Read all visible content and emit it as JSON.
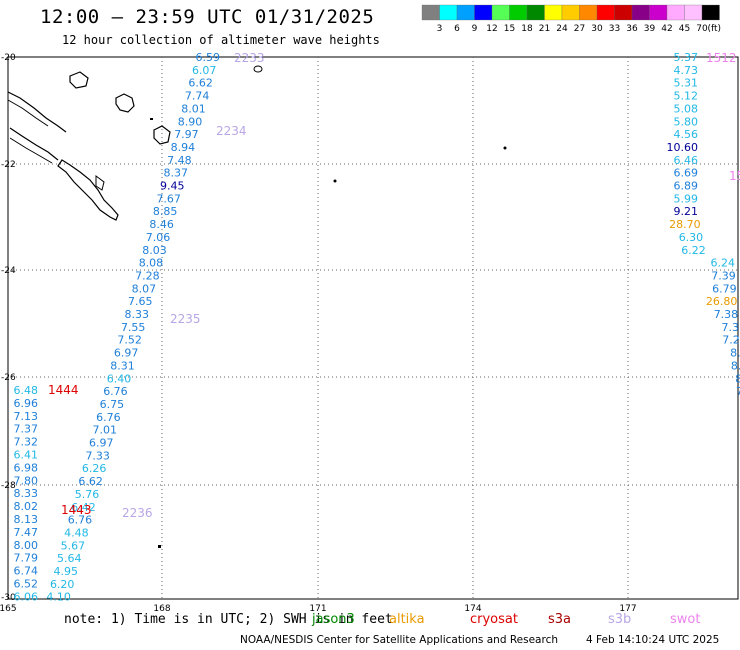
{
  "header": {
    "title": "12:00 – 23:59 UTC 01/31/2025",
    "subtitle": "12 hour collection of altimeter wave heights"
  },
  "colorbar": {
    "unit": "(ft)",
    "labels": [
      "3",
      "6",
      "9",
      "12",
      "15",
      "18",
      "21",
      "24",
      "27",
      "30",
      "33",
      "36",
      "39",
      "42",
      "45",
      "70"
    ],
    "colors": [
      "#808080",
      "#00ffff",
      "#00a0ff",
      "#0000ff",
      "#55ff55",
      "#00cc00",
      "#008800",
      "#ffff00",
      "#ffcc00",
      "#ff8800",
      "#ff0000",
      "#cc0000",
      "#880088",
      "#cc00cc",
      "#ffaaff",
      "#ffc0ff",
      "#000000"
    ]
  },
  "axes": {
    "lat_labels": [
      "-20",
      "-22",
      "-24",
      "-26",
      "-28",
      "-30"
    ],
    "lon_labels": [
      "165",
      "168",
      "171",
      "174",
      "177"
    ]
  },
  "colors": {
    "cyan": "#22b8e6",
    "blue": "#1e7fd8",
    "navy": "#000099",
    "lavender": "#b8a6e6",
    "red": "#dd0000",
    "orange": "#e89a00",
    "pink": "#ee82ee"
  },
  "tracks": {
    "t2233": {
      "label": "2233",
      "values": [
        "6.59",
        "6.07",
        "6.62",
        "7.74",
        "8.01",
        "8.90",
        "7.97",
        "8.94",
        "7.48",
        "8.37",
        "9.45",
        "7.67",
        "8.85",
        "8.46",
        "7.06",
        "8.03",
        "8.08",
        "7.28",
        "8.07",
        "7.65",
        "8.33",
        "7.55",
        "7.52",
        "6.97",
        "8.31",
        "6.40",
        "6.76",
        "6.75",
        "6.76",
        "7.01",
        "6.97",
        "7.33",
        "6.26",
        "6.62",
        "5.76",
        "6.42",
        "6.76",
        "4.48",
        "5.67",
        "5.64",
        "4.95",
        "6.20",
        "4.10"
      ],
      "labels": [
        "2234",
        "2235",
        "2236"
      ]
    },
    "t1444": {
      "label": "1444",
      "values": [
        "6.48",
        "6.96",
        "7.13",
        "7.37",
        "7.32",
        "6.41",
        "6.98",
        "7.80",
        "8.33",
        "8.02",
        "8.13",
        "7.47",
        "8.00",
        "7.79",
        "6.74",
        "6.52",
        "6.06"
      ],
      "label2": "1443"
    },
    "t1512": {
      "label": "1512",
      "values": [
        "5.37",
        "4.73",
        "5.31",
        "5.12",
        "5.08",
        "5.80",
        "4.56",
        "10.60",
        "6.46",
        "6.69",
        "6.89",
        "5.99",
        "9.21",
        "28.70",
        "6.30",
        "6.22",
        "6.24",
        "7.39",
        "6.79",
        "26.80",
        "7.38",
        "7.3",
        "7.2",
        "8.",
        "8.",
        "8",
        "7"
      ],
      "label_partial": "15"
    }
  },
  "note": {
    "text": "note: 1) Time is in UTC; 2) SWH is in feet",
    "satellites": [
      {
        "name": "jason3",
        "color": "#008800"
      },
      {
        "name": "altika",
        "color": "#e89a00"
      },
      {
        "name": "cryosat",
        "color": "#dd0000"
      },
      {
        "name": "s3a",
        "color": "#aa0000"
      },
      {
        "name": "s3b",
        "color": "#b8a6e6"
      },
      {
        "name": "swot",
        "color": "#ee82ee"
      }
    ]
  },
  "footer": {
    "credit": "NOAA/NESDIS Center for Satellite Applications and Research",
    "timestamp": "4 Feb 14:10:24 UTC 2025"
  }
}
